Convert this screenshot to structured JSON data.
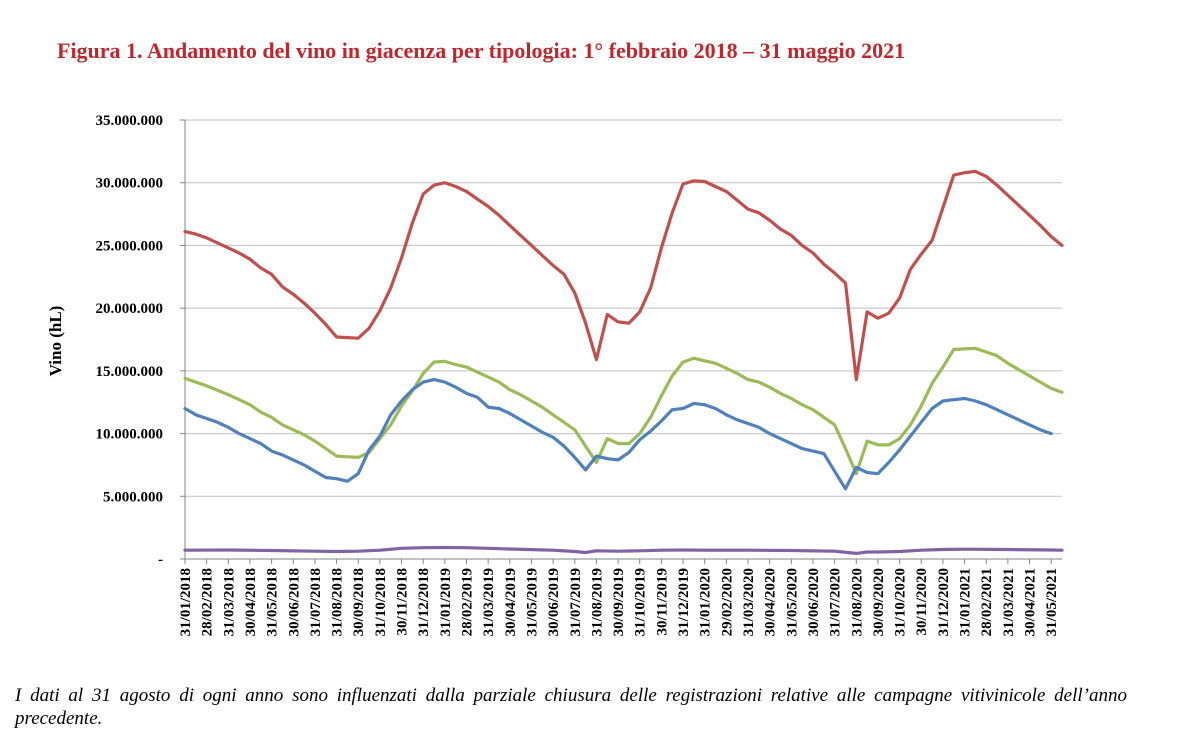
{
  "figure": {
    "title": "Figura 1. Andamento del vino in giacenza per tipologia: 1° febbraio 2018 – 31 maggio 2021",
    "note": "I dati al 31 agosto di ogni anno sono influenzati dalla parziale chiusura delle registrazioni relative alle campagne vitivinicole dell’anno precedente."
  },
  "chart_data": {
    "type": "line",
    "title": "",
    "xlabel": "",
    "ylabel": "Vino (hL)",
    "ylim": [
      0,
      35000000
    ],
    "yticks": [
      0,
      5000000,
      10000000,
      15000000,
      20000000,
      25000000,
      30000000,
      35000000
    ],
    "ytick_labels": [
      "-",
      "5.000.000",
      "10.000.000",
      "15.000.000",
      "20.000.000",
      "25.000.000",
      "30.000.000",
      "35.000.000"
    ],
    "x_tick_labels": [
      "31/01/2018",
      "28/02/2018",
      "31/03/2018",
      "30/04/2018",
      "31/05/2018",
      "30/06/2018",
      "31/07/2018",
      "31/08/2018",
      "30/09/2018",
      "31/10/2018",
      "30/11/2018",
      "31/12/2018",
      "31/01/2019",
      "28/02/2019",
      "31/03/2019",
      "30/04/2019",
      "31/05/2019",
      "30/06/2019",
      "31/07/2019",
      "31/08/2019",
      "30/09/2019",
      "31/10/2019",
      "30/11/2019",
      "31/12/2019",
      "31/01/2020",
      "29/02/2020",
      "31/03/2020",
      "30/04/2020",
      "31/05/2020",
      "30/06/2020",
      "31/07/2020",
      "31/08/2020",
      "30/09/2020",
      "31/10/2020",
      "30/11/2020",
      "31/12/2020",
      "31/01/2021",
      "28/02/2021",
      "31/03/2021",
      "30/04/2021",
      "31/05/2021"
    ],
    "grid": true,
    "legend": "none",
    "series": [
      {
        "color": "#c0504d",
        "points": [
          [
            0,
            26100000
          ],
          [
            0.5,
            25900000
          ],
          [
            1,
            25600000
          ],
          [
            1.5,
            25200000
          ],
          [
            2,
            24800000
          ],
          [
            2.5,
            24400000
          ],
          [
            3,
            23900000
          ],
          [
            3.5,
            23200000
          ],
          [
            4,
            22700000
          ],
          [
            4.5,
            21700000
          ],
          [
            5,
            21100000
          ],
          [
            5.5,
            20400000
          ],
          [
            6,
            19600000
          ],
          [
            6.5,
            18700000
          ],
          [
            7,
            17700000
          ],
          [
            7.5,
            17650000
          ],
          [
            8,
            17600000
          ],
          [
            8.5,
            18400000
          ],
          [
            9,
            19800000
          ],
          [
            9.5,
            21600000
          ],
          [
            10,
            24000000
          ],
          [
            10.5,
            26800000
          ],
          [
            11,
            29100000
          ],
          [
            11.5,
            29800000
          ],
          [
            12,
            30000000
          ],
          [
            12.5,
            29700000
          ],
          [
            13,
            29300000
          ],
          [
            13.5,
            28700000
          ],
          [
            14,
            28100000
          ],
          [
            14.5,
            27400000
          ],
          [
            15,
            26600000
          ],
          [
            15.5,
            25800000
          ],
          [
            16,
            25000000
          ],
          [
            16.5,
            24200000
          ],
          [
            17,
            23400000
          ],
          [
            17.5,
            22700000
          ],
          [
            18,
            21200000
          ],
          [
            18.5,
            18800000
          ],
          [
            19,
            15900000
          ],
          [
            19.5,
            19500000
          ],
          [
            20,
            18900000
          ],
          [
            20.5,
            18800000
          ],
          [
            21,
            19700000
          ],
          [
            21.5,
            21600000
          ],
          [
            22,
            24800000
          ],
          [
            22.5,
            27600000
          ],
          [
            23,
            29900000
          ],
          [
            23.5,
            30150000
          ],
          [
            24,
            30100000
          ],
          [
            24.5,
            29700000
          ],
          [
            25,
            29300000
          ],
          [
            25.5,
            28600000
          ],
          [
            26,
            27900000
          ],
          [
            26.5,
            27600000
          ],
          [
            27,
            27000000
          ],
          [
            27.5,
            26300000
          ],
          [
            28,
            25800000
          ],
          [
            28.5,
            25000000
          ],
          [
            29,
            24400000
          ],
          [
            29.5,
            23500000
          ],
          [
            30,
            22800000
          ],
          [
            30.5,
            22000000
          ],
          [
            31,
            14300000
          ],
          [
            31.5,
            19700000
          ],
          [
            32,
            19200000
          ],
          [
            32.5,
            19600000
          ],
          [
            33,
            20800000
          ],
          [
            33.5,
            23100000
          ],
          [
            34,
            24300000
          ],
          [
            34.5,
            25400000
          ],
          [
            35,
            28000000
          ],
          [
            35.5,
            30600000
          ],
          [
            36,
            30800000
          ],
          [
            36.5,
            30900000
          ],
          [
            37,
            30500000
          ],
          [
            37.5,
            29800000
          ],
          [
            38,
            29000000
          ],
          [
            38.5,
            28200000
          ],
          [
            39,
            27400000
          ],
          [
            39.5,
            26600000
          ],
          [
            40,
            25700000
          ],
          [
            40.5,
            25000000
          ]
        ]
      },
      {
        "color": "#9bbb59",
        "points": [
          [
            0,
            14400000
          ],
          [
            1,
            13800000
          ],
          [
            2,
            13100000
          ],
          [
            3,
            12300000
          ],
          [
            3.5,
            11700000
          ],
          [
            4,
            11300000
          ],
          [
            4.5,
            10700000
          ],
          [
            5,
            10300000
          ],
          [
            5.5,
            9900000
          ],
          [
            6,
            9400000
          ],
          [
            6.5,
            8800000
          ],
          [
            7,
            8200000
          ],
          [
            7.5,
            8150000
          ],
          [
            8,
            8100000
          ],
          [
            8.5,
            8500000
          ],
          [
            9,
            9600000
          ],
          [
            9.5,
            10700000
          ],
          [
            10,
            12200000
          ],
          [
            10.5,
            13400000
          ],
          [
            11,
            14800000
          ],
          [
            11.5,
            15700000
          ],
          [
            12,
            15750000
          ],
          [
            12.5,
            15500000
          ],
          [
            13,
            15300000
          ],
          [
            13.5,
            14900000
          ],
          [
            14,
            14500000
          ],
          [
            14.5,
            14100000
          ],
          [
            15,
            13500000
          ],
          [
            15.5,
            13100000
          ],
          [
            16,
            12600000
          ],
          [
            16.5,
            12100000
          ],
          [
            17,
            11500000
          ],
          [
            17.5,
            10900000
          ],
          [
            18,
            10300000
          ],
          [
            18.5,
            9000000
          ],
          [
            19,
            7700000
          ],
          [
            19.5,
            9600000
          ],
          [
            20,
            9200000
          ],
          [
            20.5,
            9200000
          ],
          [
            21,
            10000000
          ],
          [
            21.5,
            11300000
          ],
          [
            22,
            13000000
          ],
          [
            22.5,
            14600000
          ],
          [
            23,
            15700000
          ],
          [
            23.5,
            16000000
          ],
          [
            24,
            15800000
          ],
          [
            24.5,
            15600000
          ],
          [
            25,
            15200000
          ],
          [
            25.5,
            14800000
          ],
          [
            26,
            14300000
          ],
          [
            26.5,
            14100000
          ],
          [
            27,
            13700000
          ],
          [
            27.5,
            13200000
          ],
          [
            28,
            12800000
          ],
          [
            28.5,
            12300000
          ],
          [
            29,
            11900000
          ],
          [
            29.5,
            11300000
          ],
          [
            30,
            10700000
          ],
          [
            30.5,
            8800000
          ],
          [
            31,
            6800000
          ],
          [
            31.5,
            9400000
          ],
          [
            32,
            9100000
          ],
          [
            32.5,
            9100000
          ],
          [
            33,
            9600000
          ],
          [
            33.5,
            10700000
          ],
          [
            34,
            12200000
          ],
          [
            34.5,
            14000000
          ],
          [
            35,
            15300000
          ],
          [
            35.5,
            16700000
          ],
          [
            36,
            16750000
          ],
          [
            36.5,
            16800000
          ],
          [
            37,
            16500000
          ],
          [
            37.5,
            16200000
          ],
          [
            38,
            15600000
          ],
          [
            38.5,
            15100000
          ],
          [
            39,
            14600000
          ],
          [
            39.5,
            14100000
          ],
          [
            40,
            13600000
          ],
          [
            40.5,
            13300000
          ]
        ]
      },
      {
        "color": "#4f81bd",
        "points": [
          [
            0,
            12000000
          ],
          [
            0.5,
            11500000
          ],
          [
            1,
            11200000
          ],
          [
            1.5,
            10900000
          ],
          [
            2,
            10500000
          ],
          [
            2.5,
            10000000
          ],
          [
            3,
            9600000
          ],
          [
            3.5,
            9200000
          ],
          [
            4,
            8600000
          ],
          [
            4.5,
            8300000
          ],
          [
            5,
            7900000
          ],
          [
            5.5,
            7500000
          ],
          [
            6,
            7000000
          ],
          [
            6.5,
            6500000
          ],
          [
            7,
            6400000
          ],
          [
            7.5,
            6200000
          ],
          [
            8,
            6800000
          ],
          [
            8.5,
            8700000
          ],
          [
            9,
            9800000
          ],
          [
            9.5,
            11500000
          ],
          [
            10,
            12600000
          ],
          [
            10.5,
            13500000
          ],
          [
            11,
            14100000
          ],
          [
            11.5,
            14300000
          ],
          [
            12,
            14100000
          ],
          [
            12.5,
            13700000
          ],
          [
            13,
            13200000
          ],
          [
            13.5,
            12900000
          ],
          [
            14,
            12100000
          ],
          [
            14.5,
            12000000
          ],
          [
            15,
            11600000
          ],
          [
            15.5,
            11100000
          ],
          [
            16,
            10600000
          ],
          [
            16.5,
            10100000
          ],
          [
            17,
            9700000
          ],
          [
            17.5,
            9000000
          ],
          [
            18,
            8100000
          ],
          [
            18.5,
            7100000
          ],
          [
            19,
            8200000
          ],
          [
            19.5,
            8000000
          ],
          [
            20,
            7900000
          ],
          [
            20.5,
            8500000
          ],
          [
            21,
            9500000
          ],
          [
            21.5,
            10200000
          ],
          [
            22,
            11000000
          ],
          [
            22.5,
            11900000
          ],
          [
            23,
            12000000
          ],
          [
            23.5,
            12400000
          ],
          [
            24,
            12300000
          ],
          [
            24.5,
            12000000
          ],
          [
            25,
            11500000
          ],
          [
            25.5,
            11100000
          ],
          [
            26,
            10800000
          ],
          [
            26.5,
            10500000
          ],
          [
            27,
            10000000
          ],
          [
            27.5,
            9600000
          ],
          [
            28,
            9200000
          ],
          [
            28.5,
            8800000
          ],
          [
            29,
            8600000
          ],
          [
            29.5,
            8400000
          ],
          [
            30,
            7000000
          ],
          [
            30.5,
            5600000
          ],
          [
            31,
            7300000
          ],
          [
            31.5,
            6900000
          ],
          [
            32,
            6800000
          ],
          [
            32.5,
            7700000
          ],
          [
            33,
            8700000
          ],
          [
            33.5,
            9800000
          ],
          [
            34,
            10900000
          ],
          [
            34.5,
            12000000
          ],
          [
            35,
            12600000
          ],
          [
            35.5,
            12700000
          ],
          [
            36,
            12800000
          ],
          [
            36.5,
            12600000
          ],
          [
            37,
            12300000
          ],
          [
            37.5,
            11900000
          ],
          [
            38,
            11500000
          ],
          [
            38.5,
            11100000
          ],
          [
            39,
            10700000
          ],
          [
            39.5,
            10300000
          ],
          [
            40,
            10000000
          ]
        ]
      },
      {
        "color": "#8064a2",
        "points": [
          [
            0,
            700000
          ],
          [
            2,
            720000
          ],
          [
            4,
            680000
          ],
          [
            6,
            620000
          ],
          [
            7,
            600000
          ],
          [
            8,
            620000
          ],
          [
            9,
            700000
          ],
          [
            10,
            850000
          ],
          [
            11,
            900000
          ],
          [
            12,
            920000
          ],
          [
            13,
            900000
          ],
          [
            14,
            850000
          ],
          [
            15,
            800000
          ],
          [
            16,
            750000
          ],
          [
            17,
            700000
          ],
          [
            18,
            600000
          ],
          [
            18.5,
            520000
          ],
          [
            19,
            650000
          ],
          [
            20,
            620000
          ],
          [
            21,
            650000
          ],
          [
            22,
            700000
          ],
          [
            23,
            720000
          ],
          [
            24,
            700000
          ],
          [
            26,
            700000
          ],
          [
            28,
            680000
          ],
          [
            30,
            620000
          ],
          [
            31,
            450000
          ],
          [
            31.5,
            560000
          ],
          [
            32,
            560000
          ],
          [
            33,
            600000
          ],
          [
            34,
            700000
          ],
          [
            35,
            760000
          ],
          [
            36,
            780000
          ],
          [
            38,
            760000
          ],
          [
            40,
            720000
          ],
          [
            40.5,
            700000
          ]
        ]
      }
    ]
  }
}
